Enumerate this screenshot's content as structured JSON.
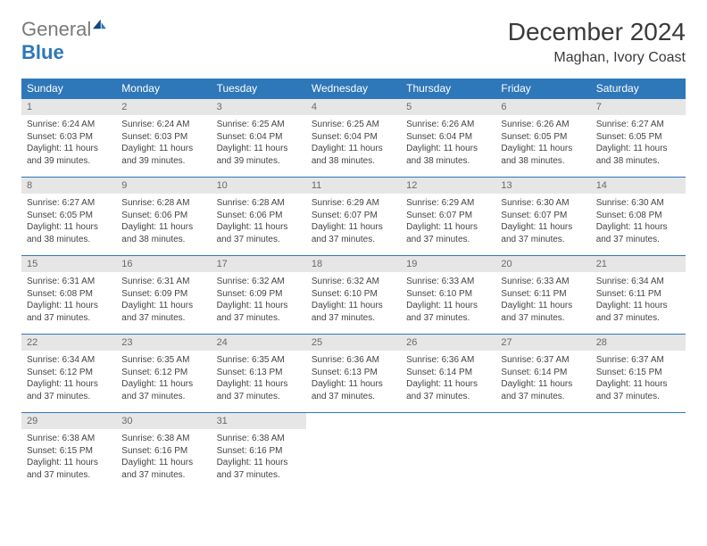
{
  "logo": {
    "general": "General",
    "blue": "Blue"
  },
  "title": "December 2024",
  "location": "Maghan, Ivory Coast",
  "colors": {
    "header_bg": "#2e77b8",
    "header_text": "#ffffff",
    "daynum_bg": "#e6e6e6",
    "daynum_text": "#6a6a6a",
    "body_text": "#444444",
    "rule": "#2e77b8",
    "logo_gray": "#7a7a7a",
    "logo_blue": "#2e77b8"
  },
  "week_headers": [
    "Sunday",
    "Monday",
    "Tuesday",
    "Wednesday",
    "Thursday",
    "Friday",
    "Saturday"
  ],
  "days": [
    {
      "n": 1,
      "sunrise": "6:24 AM",
      "sunset": "6:03 PM",
      "daylight": "11 hours and 39 minutes."
    },
    {
      "n": 2,
      "sunrise": "6:24 AM",
      "sunset": "6:03 PM",
      "daylight": "11 hours and 39 minutes."
    },
    {
      "n": 3,
      "sunrise": "6:25 AM",
      "sunset": "6:04 PM",
      "daylight": "11 hours and 39 minutes."
    },
    {
      "n": 4,
      "sunrise": "6:25 AM",
      "sunset": "6:04 PM",
      "daylight": "11 hours and 38 minutes."
    },
    {
      "n": 5,
      "sunrise": "6:26 AM",
      "sunset": "6:04 PM",
      "daylight": "11 hours and 38 minutes."
    },
    {
      "n": 6,
      "sunrise": "6:26 AM",
      "sunset": "6:05 PM",
      "daylight": "11 hours and 38 minutes."
    },
    {
      "n": 7,
      "sunrise": "6:27 AM",
      "sunset": "6:05 PM",
      "daylight": "11 hours and 38 minutes."
    },
    {
      "n": 8,
      "sunrise": "6:27 AM",
      "sunset": "6:05 PM",
      "daylight": "11 hours and 38 minutes."
    },
    {
      "n": 9,
      "sunrise": "6:28 AM",
      "sunset": "6:06 PM",
      "daylight": "11 hours and 38 minutes."
    },
    {
      "n": 10,
      "sunrise": "6:28 AM",
      "sunset": "6:06 PM",
      "daylight": "11 hours and 37 minutes."
    },
    {
      "n": 11,
      "sunrise": "6:29 AM",
      "sunset": "6:07 PM",
      "daylight": "11 hours and 37 minutes."
    },
    {
      "n": 12,
      "sunrise": "6:29 AM",
      "sunset": "6:07 PM",
      "daylight": "11 hours and 37 minutes."
    },
    {
      "n": 13,
      "sunrise": "6:30 AM",
      "sunset": "6:07 PM",
      "daylight": "11 hours and 37 minutes."
    },
    {
      "n": 14,
      "sunrise": "6:30 AM",
      "sunset": "6:08 PM",
      "daylight": "11 hours and 37 minutes."
    },
    {
      "n": 15,
      "sunrise": "6:31 AM",
      "sunset": "6:08 PM",
      "daylight": "11 hours and 37 minutes."
    },
    {
      "n": 16,
      "sunrise": "6:31 AM",
      "sunset": "6:09 PM",
      "daylight": "11 hours and 37 minutes."
    },
    {
      "n": 17,
      "sunrise": "6:32 AM",
      "sunset": "6:09 PM",
      "daylight": "11 hours and 37 minutes."
    },
    {
      "n": 18,
      "sunrise": "6:32 AM",
      "sunset": "6:10 PM",
      "daylight": "11 hours and 37 minutes."
    },
    {
      "n": 19,
      "sunrise": "6:33 AM",
      "sunset": "6:10 PM",
      "daylight": "11 hours and 37 minutes."
    },
    {
      "n": 20,
      "sunrise": "6:33 AM",
      "sunset": "6:11 PM",
      "daylight": "11 hours and 37 minutes."
    },
    {
      "n": 21,
      "sunrise": "6:34 AM",
      "sunset": "6:11 PM",
      "daylight": "11 hours and 37 minutes."
    },
    {
      "n": 22,
      "sunrise": "6:34 AM",
      "sunset": "6:12 PM",
      "daylight": "11 hours and 37 minutes."
    },
    {
      "n": 23,
      "sunrise": "6:35 AM",
      "sunset": "6:12 PM",
      "daylight": "11 hours and 37 minutes."
    },
    {
      "n": 24,
      "sunrise": "6:35 AM",
      "sunset": "6:13 PM",
      "daylight": "11 hours and 37 minutes."
    },
    {
      "n": 25,
      "sunrise": "6:36 AM",
      "sunset": "6:13 PM",
      "daylight": "11 hours and 37 minutes."
    },
    {
      "n": 26,
      "sunrise": "6:36 AM",
      "sunset": "6:14 PM",
      "daylight": "11 hours and 37 minutes."
    },
    {
      "n": 27,
      "sunrise": "6:37 AM",
      "sunset": "6:14 PM",
      "daylight": "11 hours and 37 minutes."
    },
    {
      "n": 28,
      "sunrise": "6:37 AM",
      "sunset": "6:15 PM",
      "daylight": "11 hours and 37 minutes."
    },
    {
      "n": 29,
      "sunrise": "6:38 AM",
      "sunset": "6:15 PM",
      "daylight": "11 hours and 37 minutes."
    },
    {
      "n": 30,
      "sunrise": "6:38 AM",
      "sunset": "6:16 PM",
      "daylight": "11 hours and 37 minutes."
    },
    {
      "n": 31,
      "sunrise": "6:38 AM",
      "sunset": "6:16 PM",
      "daylight": "11 hours and 37 minutes."
    }
  ],
  "labels": {
    "sunrise": "Sunrise: ",
    "sunset": "Sunset: ",
    "daylight": "Daylight: "
  },
  "first_weekday_index": 0,
  "total_cells": 35
}
